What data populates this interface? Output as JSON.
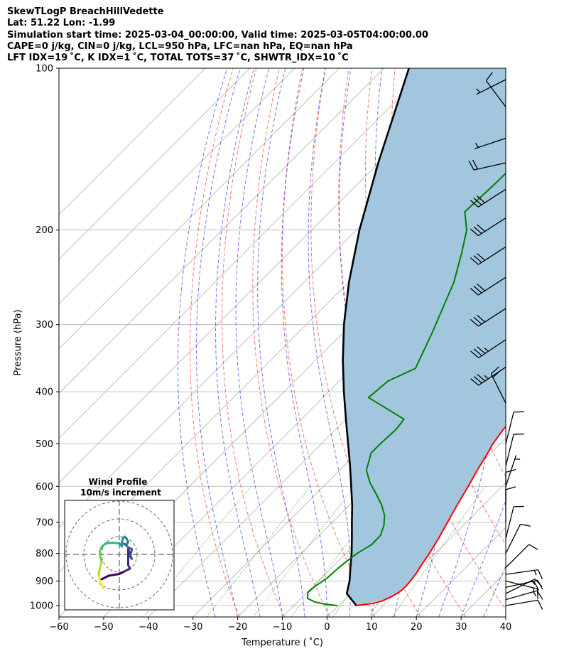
{
  "header": {
    "lines": [
      "SkewTLogP BreachHillVedette",
      "Lat: 51.22   Lon: -1.99",
      "Simulation start time: 2025-03-04_00:00:00, Valid time: 2025-03-05T04:00:00.00",
      "CAPE=0 j/kg, CIN=0 j/kg, LCL=950 hPa, LFC=nan hPa, EQ=nan hPa",
      "LFT IDX=19 ˚C, K IDX=1 ˚C, TOTAL TOTS=37 ˚C, SHWTR_IDX=10 ˚C"
    ]
  },
  "chart_data": {
    "type": "skew-t log-p",
    "xlabel": "Temperature ( ˚C)",
    "ylabel": "Pressure (hPa)",
    "xlim": [
      -60,
      40
    ],
    "ylim": [
      1050,
      100
    ],
    "x_ticks": [
      -60,
      -50,
      -40,
      -30,
      -20,
      -10,
      0,
      10,
      20,
      30,
      40
    ],
    "x_tick_labels": [
      "−60",
      "−50",
      "−40",
      "−30",
      "−20",
      "−10",
      "0",
      "10",
      "20",
      "30",
      "40"
    ],
    "y_ticks": [
      100,
      200,
      300,
      400,
      500,
      600,
      700,
      800,
      900,
      1000
    ],
    "y_tick_labels": [
      "100",
      "200",
      "300",
      "400",
      "500",
      "600",
      "700",
      "800",
      "900",
      "1000"
    ],
    "grid": true,
    "skew_isotherms_c": [
      -150,
      -140,
      -130,
      -120,
      -110,
      -100,
      -90,
      -80,
      -70,
      -60,
      -50,
      -40,
      -30,
      -20,
      -10,
      0,
      10,
      20,
      30,
      40
    ],
    "dry_adiabats_theta_k": [
      250,
      260,
      270,
      280,
      290,
      300,
      310,
      320,
      330,
      340,
      350,
      360,
      370,
      380,
      390,
      400,
      410,
      420
    ],
    "moist_adiabats_start_c": [
      -25,
      -20,
      -15,
      -10,
      -5,
      0,
      5,
      10,
      15,
      20,
      25,
      30,
      35,
      40,
      45
    ],
    "mixing_ratio_lines_gkg": [
      0.1,
      0.4,
      1,
      2,
      4,
      7,
      10
    ],
    "temperature": {
      "color": "#ff0000",
      "points": [
        [
          1000,
          4.0
        ],
        [
          990,
          7.3
        ],
        [
          980,
          8.8
        ],
        [
          960,
          10.0
        ],
        [
          940,
          10.7
        ],
        [
          920,
          10.8
        ],
        [
          900,
          10.6
        ],
        [
          870,
          10.2
        ],
        [
          850,
          9.7
        ],
        [
          800,
          8.7
        ],
        [
          750,
          7.4
        ],
        [
          700,
          5.8
        ],
        [
          650,
          4.1
        ],
        [
          600,
          2.4
        ],
        [
          560,
          0.8
        ],
        [
          520,
          -0.7
        ],
        [
          500,
          -1.6
        ],
        [
          470,
          -2.5
        ],
        [
          440,
          -2.8
        ],
        [
          410,
          -2.3
        ],
        [
          390,
          -1.8
        ],
        [
          370,
          -2.6
        ],
        [
          355,
          -3.1
        ],
        [
          330,
          -6.3
        ],
        [
          300,
          -10.6
        ],
        [
          270,
          -15.8
        ],
        [
          240,
          -21.6
        ],
        [
          220,
          -25.8
        ],
        [
          200,
          -29.5
        ],
        [
          185,
          -32.0
        ],
        [
          170,
          -33.0
        ],
        [
          162,
          -34.0
        ],
        [
          155,
          -35.0
        ],
        [
          150,
          -34.0
        ],
        [
          142,
          -30.0
        ],
        [
          135,
          -31.2
        ],
        [
          120,
          -36.7
        ],
        [
          112,
          -40.7
        ],
        [
          100,
          -46.2
        ]
      ]
    },
    "dewpoint": {
      "color": "#008000",
      "points": [
        [
          1000,
          -0.2
        ],
        [
          995,
          -3.0
        ],
        [
          985,
          -6.0
        ],
        [
          970,
          -8.5
        ],
        [
          945,
          -9.8
        ],
        [
          920,
          -9.5
        ],
        [
          890,
          -8.7
        ],
        [
          860,
          -8.5
        ],
        [
          830,
          -8.1
        ],
        [
          800,
          -7.5
        ],
        [
          770,
          -6.2
        ],
        [
          740,
          -6.3
        ],
        [
          710,
          -7.7
        ],
        [
          680,
          -9.8
        ],
        [
          650,
          -12.8
        ],
        [
          620,
          -16.5
        ],
        [
          590,
          -20.5
        ],
        [
          560,
          -24.0
        ],
        [
          520,
          -26.8
        ],
        [
          500,
          -26.8
        ],
        [
          470,
          -26.5
        ],
        [
          450,
          -27.0
        ],
        [
          410,
          -39.8
        ],
        [
          382,
          -39.1
        ],
        [
          362,
          -35.8
        ],
        [
          310,
          -40.1
        ],
        [
          250,
          -46.5
        ],
        [
          220,
          -51.4
        ],
        [
          200,
          -55.3
        ],
        [
          185,
          -59.8
        ],
        [
          165,
          -59.3
        ],
        [
          150,
          -59.2
        ],
        [
          142,
          -59.7
        ],
        [
          130,
          -61.8
        ],
        [
          120,
          -63.5
        ],
        [
          110,
          -65.1
        ],
        [
          100,
          -66.9
        ]
      ]
    },
    "parcel": {
      "color": "#000000",
      "points": [
        [
          1000,
          4.0
        ],
        [
          950,
          -0.8
        ],
        [
          900,
          -3.0
        ],
        [
          850,
          -5.8
        ],
        [
          800,
          -8.7
        ],
        [
          750,
          -12.0
        ],
        [
          700,
          -15.6
        ],
        [
          650,
          -19.4
        ],
        [
          600,
          -23.8
        ],
        [
          550,
          -28.6
        ],
        [
          500,
          -34.0
        ],
        [
          450,
          -40.0
        ],
        [
          400,
          -46.6
        ],
        [
          350,
          -53.8
        ],
        [
          300,
          -61.6
        ],
        [
          250,
          -70.0
        ],
        [
          200,
          -79.3
        ],
        [
          150,
          -90.1
        ],
        [
          100,
          -104.4
        ]
      ]
    },
    "shading": {
      "color": "#a3c6df",
      "between": [
        "temperature",
        "parcel"
      ]
    },
    "wind_barbs": [
      {
        "pressure": 1000,
        "u": -6,
        "v": -1
      },
      {
        "pressure": 975,
        "u": -7,
        "v": -2
      },
      {
        "pressure": 950,
        "u": -8,
        "v": -4
      },
      {
        "pressure": 925,
        "u": -9,
        "v": -2
      },
      {
        "pressure": 900,
        "u": -8,
        "v": 2
      },
      {
        "pressure": 875,
        "u": -7,
        "v": -1
      },
      {
        "pressure": 850,
        "u": -4,
        "v": -4
      },
      {
        "pressure": 800,
        "u": -2,
        "v": -4
      },
      {
        "pressure": 750,
        "u": -1,
        "v": -4
      },
      {
        "pressure": 700,
        "u": 0,
        "v": -4
      },
      {
        "pressure": 650,
        "u": 0,
        "v": -5
      },
      {
        "pressure": 600,
        "u": -1,
        "v": -3
      },
      {
        "pressure": 550,
        "u": -1,
        "v": -4
      },
      {
        "pressure": 500,
        "u": -1,
        "v": -4
      },
      {
        "pressure": 420,
        "u": 5,
        "v": -10
      },
      {
        "pressure": 360,
        "u": 15,
        "v": 10
      },
      {
        "pressure": 320,
        "u": 15,
        "v": 10
      },
      {
        "pressure": 280,
        "u": 14,
        "v": 9
      },
      {
        "pressure": 245,
        "u": 14,
        "v": 9
      },
      {
        "pressure": 215,
        "u": 14,
        "v": 9
      },
      {
        "pressure": 190,
        "u": 14,
        "v": 9
      },
      {
        "pressure": 168,
        "u": 14,
        "v": 9
      },
      {
        "pressure": 150,
        "u": 9,
        "v": 2
      },
      {
        "pressure": 135,
        "u": 3,
        "v": 1
      },
      {
        "pressure": 118,
        "u": 3,
        "v": -4
      },
      {
        "pressure": 105,
        "u": 2,
        "v": 1
      }
    ],
    "hodograph": {
      "title": "Wind Profile",
      "subtitle": "10m/s increment",
      "rings_ms": [
        10,
        20,
        30
      ],
      "points": [
        [
          -9,
          -19
        ],
        [
          -9.5,
          -18
        ],
        [
          -10,
          -17
        ],
        [
          -10.5,
          -16
        ],
        [
          -11,
          -14
        ],
        [
          -11.5,
          -12
        ],
        [
          -11.5,
          -10
        ],
        [
          -11,
          -8
        ],
        [
          -10.5,
          -6
        ],
        [
          -10,
          -4
        ],
        [
          -10.5,
          -2
        ],
        [
          -11,
          0
        ],
        [
          -11,
          2
        ],
        [
          -10,
          4
        ],
        [
          -8,
          6
        ],
        [
          -6,
          6.5
        ],
        [
          -3,
          6.5
        ],
        [
          0,
          6.2
        ],
        [
          1.5,
          4.5
        ],
        [
          1.5,
          7
        ],
        [
          2,
          9
        ],
        [
          3,
          10
        ],
        [
          4,
          9
        ],
        [
          5,
          7
        ],
        [
          4,
          5.5
        ],
        [
          2.5,
          6
        ],
        [
          4,
          5
        ],
        [
          5,
          4
        ],
        [
          6,
          3.5
        ],
        [
          7,
          3
        ],
        [
          7,
          2.5
        ],
        [
          6,
          -1
        ],
        [
          7,
          -2.5
        ],
        [
          5,
          3
        ],
        [
          5,
          -6
        ],
        [
          6,
          -8
        ],
        [
          4,
          -9
        ],
        [
          2,
          -10
        ],
        [
          0,
          -11
        ],
        [
          -6,
          -12
        ],
        [
          -8,
          -13
        ],
        [
          -10,
          -14
        ]
      ],
      "colormap": "viridis_reversed"
    }
  }
}
